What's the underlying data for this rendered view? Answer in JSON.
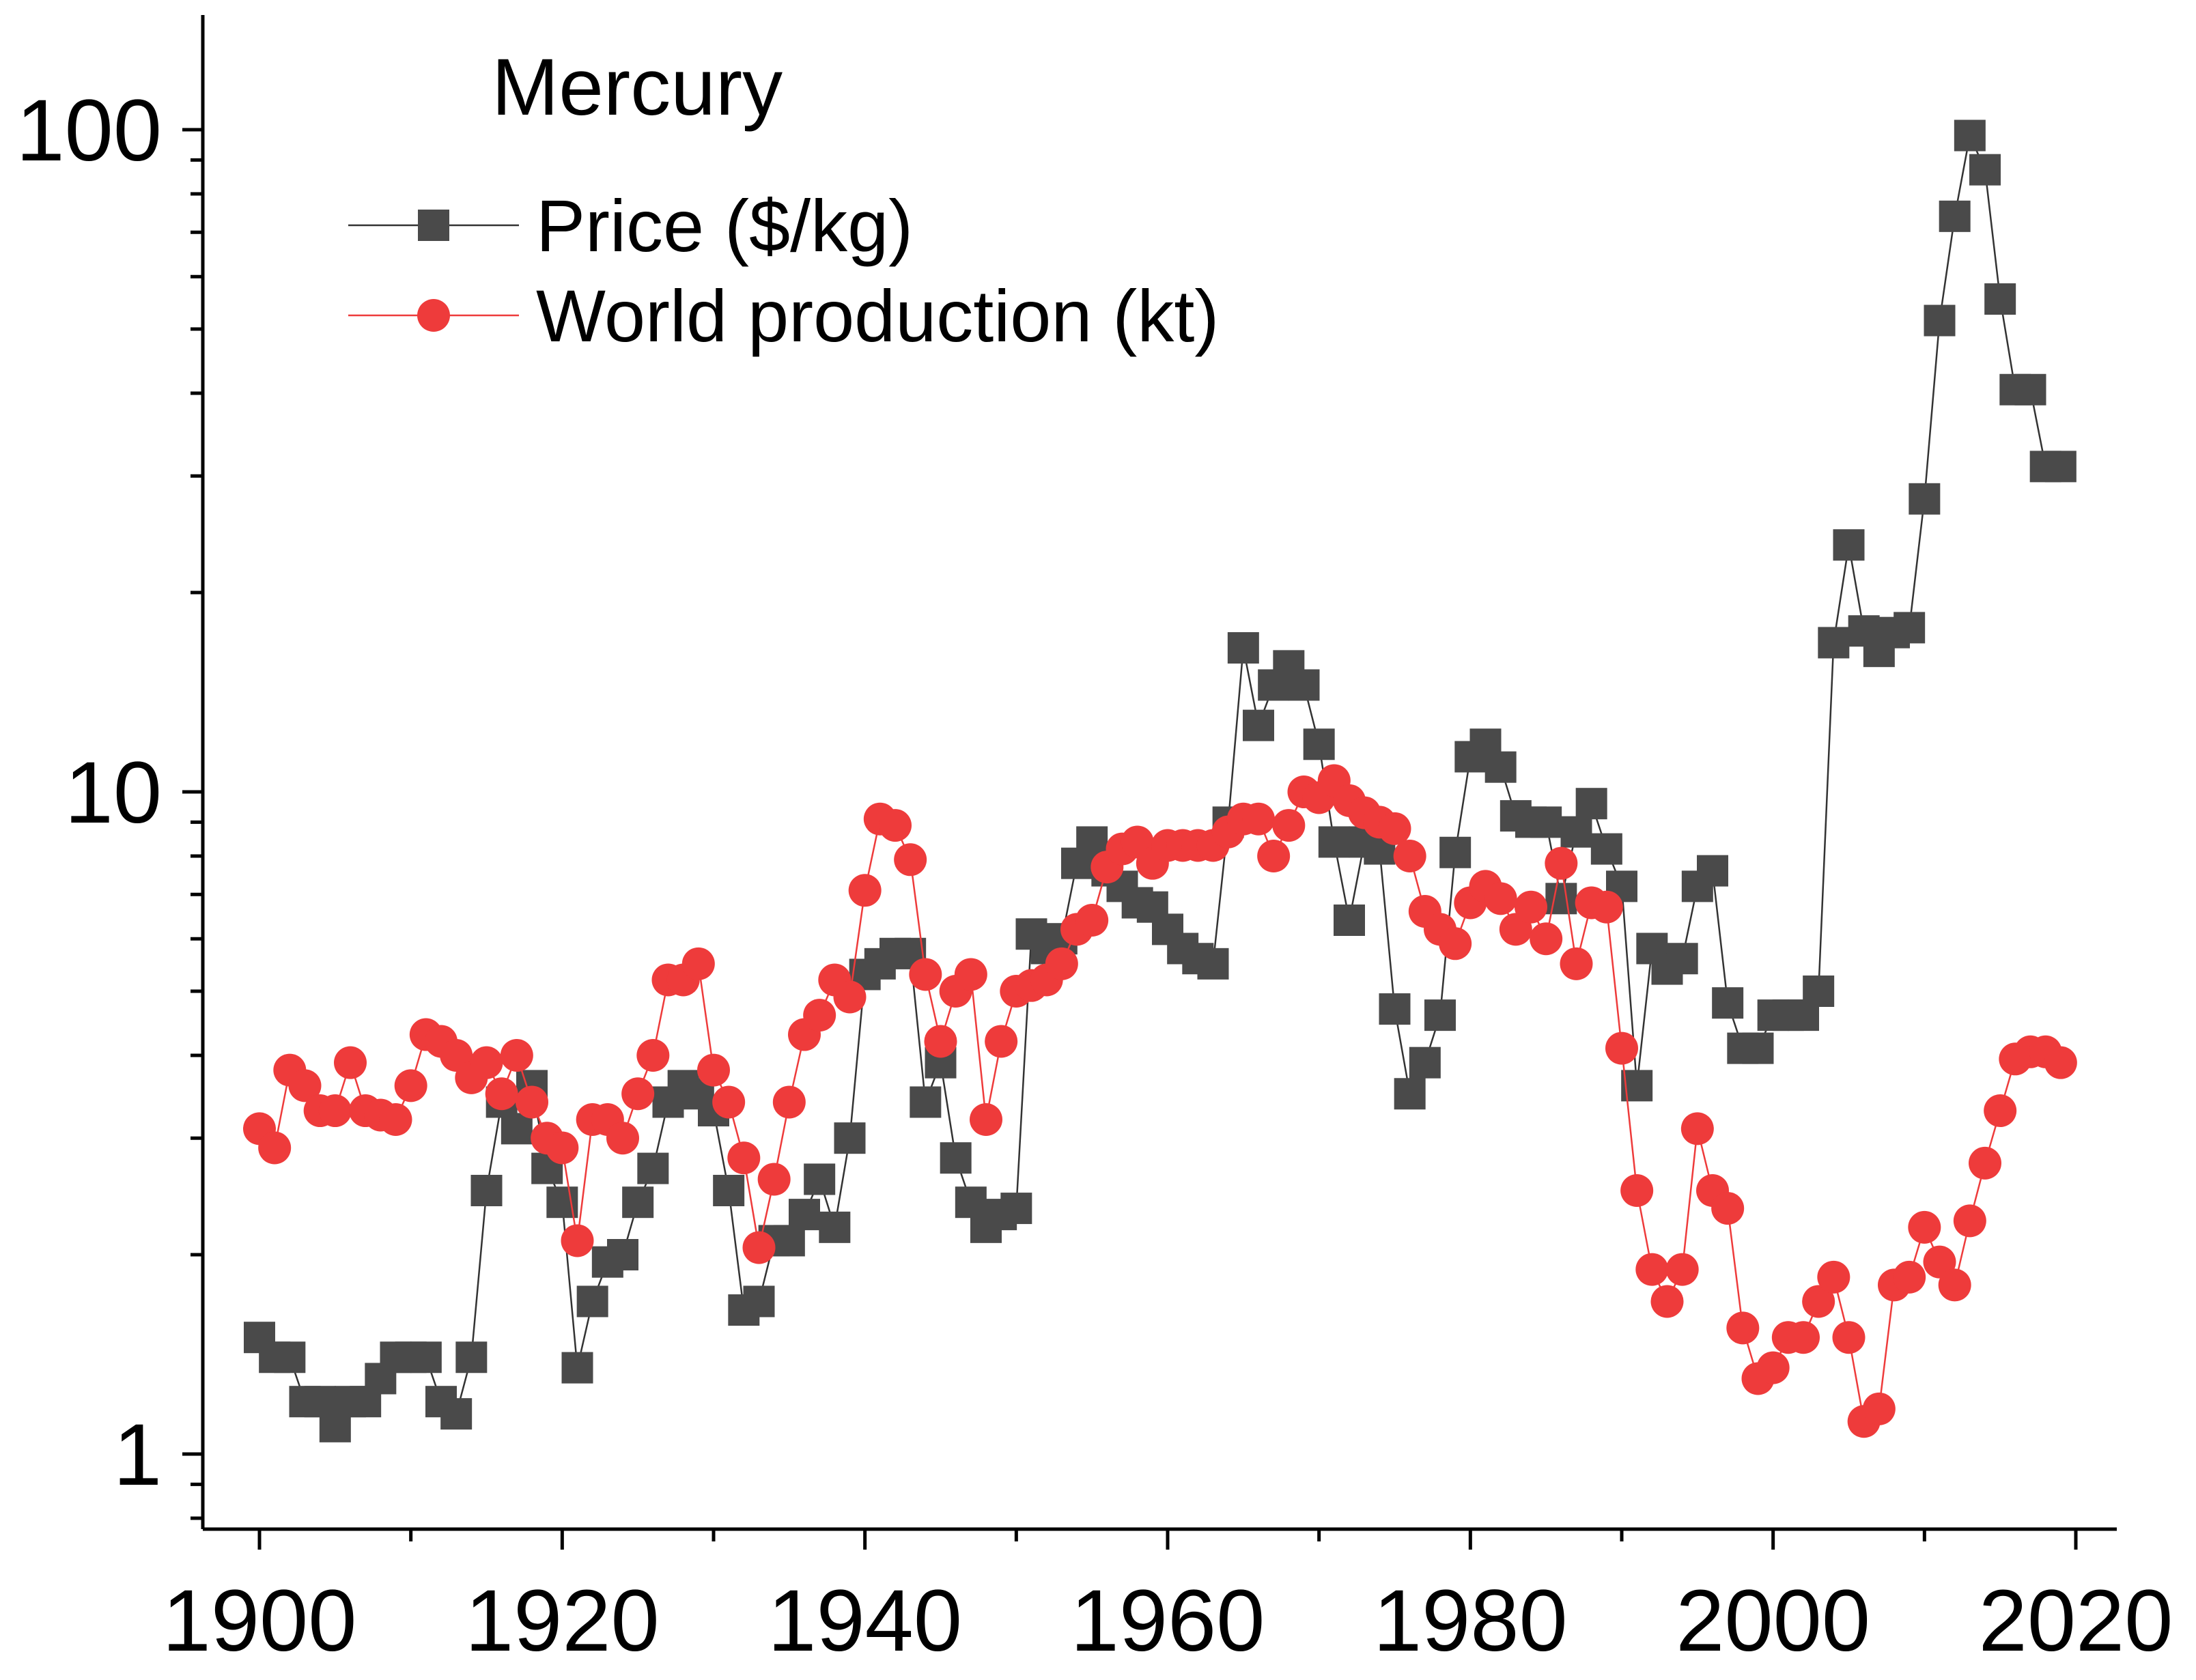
{
  "chart_data": {
    "type": "scatter",
    "title": "Mercury",
    "xlabel": "",
    "ylabel": "",
    "xlim": [
      1896,
      2023
    ],
    "ylim": [
      0.78,
      160
    ],
    "y_scale": "log",
    "grid": false,
    "legend_position": "top-left",
    "x_ticks": [
      {
        "value": 1900,
        "label": "1900"
      },
      {
        "value": 1920,
        "label": "1920"
      },
      {
        "value": 1940,
        "label": "1940"
      },
      {
        "value": 1960,
        "label": "1960"
      },
      {
        "value": 1980,
        "label": "1980"
      },
      {
        "value": 2000,
        "label": "2000"
      },
      {
        "value": 2020,
        "label": "2020"
      }
    ],
    "y_ticks": [
      {
        "value": 1,
        "label": "1"
      },
      {
        "value": 10,
        "label": "10"
      },
      {
        "value": 100,
        "label": "100"
      }
    ],
    "series": [
      {
        "name": "Price ($/kg)",
        "marker": "square",
        "color": "#4a4a4a",
        "line_color": "#333333",
        "x": [
          1900,
          1901,
          1902,
          1903,
          1904,
          1905,
          1906,
          1907,
          1908,
          1909,
          1910,
          1911,
          1912,
          1913,
          1914,
          1915,
          1916,
          1917,
          1918,
          1919,
          1920,
          1921,
          1922,
          1923,
          1924,
          1925,
          1926,
          1927,
          1928,
          1929,
          1930,
          1931,
          1932,
          1933,
          1934,
          1935,
          1936,
          1937,
          1938,
          1939,
          1940,
          1941,
          1942,
          1943,
          1944,
          1945,
          1946,
          1947,
          1948,
          1949,
          1950,
          1951,
          1952,
          1953,
          1954,
          1955,
          1956,
          1957,
          1958,
          1959,
          1960,
          1961,
          1962,
          1963,
          1964,
          1965,
          1966,
          1967,
          1968,
          1969,
          1970,
          1971,
          1972,
          1973,
          1974,
          1975,
          1976,
          1977,
          1978,
          1979,
          1980,
          1981,
          1982,
          1983,
          1984,
          1985,
          1986,
          1987,
          1988,
          1989,
          1990,
          1991,
          1992,
          1993,
          1994,
          1995,
          1996,
          1997,
          1998,
          1999,
          2000,
          2001,
          2002,
          2003,
          2004,
          2005,
          2006,
          2007,
          2008,
          2009,
          2010,
          2011,
          2012,
          2013,
          2014,
          2015,
          2016,
          2017,
          2018,
          2019
        ],
        "y": [
          1.5,
          1.4,
          1.4,
          1.2,
          1.2,
          1.1,
          1.2,
          1.2,
          1.3,
          1.4,
          1.4,
          1.4,
          1.2,
          1.15,
          1.4,
          2.5,
          3.4,
          3.1,
          3.6,
          2.7,
          2.4,
          1.35,
          1.7,
          1.95,
          2.0,
          2.4,
          2.7,
          3.4,
          3.6,
          3.5,
          3.3,
          2.5,
          1.65,
          1.7,
          2.1,
          2.1,
          2.3,
          2.6,
          2.2,
          3.0,
          5.3,
          5.5,
          5.7,
          5.7,
          3.4,
          3.9,
          2.8,
          2.4,
          2.2,
          2.3,
          2.35,
          6.1,
          5.8,
          6.0,
          7.8,
          8.4,
          7.6,
          7.2,
          6.8,
          6.7,
          6.2,
          5.8,
          5.6,
          5.5,
          9.0,
          16.5,
          12.6,
          14.5,
          15.5,
          14.5,
          11.8,
          8.4,
          6.4,
          8.4,
          8.2,
          4.7,
          3.5,
          3.9,
          4.6,
          8.1,
          11.3,
          11.8,
          10.9,
          9.2,
          9.0,
          9.0,
          6.9,
          8.7,
          9.6,
          8.2,
          7.2,
          3.6,
          5.8,
          5.4,
          5.6,
          7.2,
          7.6,
          4.8,
          4.1,
          4.1,
          4.6,
          4.6,
          4.6,
          5.0,
          16.8,
          23.6,
          17.5,
          16.3,
          17.4,
          17.7,
          27.7,
          51.5,
          74.0,
          98.0,
          87.0,
          55.5,
          40.5,
          40.5,
          31.0,
          31.0
        ]
      },
      {
        "name": "World production (kt)",
        "marker": "circle",
        "color": "#ee3b3b",
        "line_color": "#ee3b3b",
        "x": [
          1900,
          1901,
          1902,
          1903,
          1904,
          1905,
          1906,
          1907,
          1908,
          1909,
          1910,
          1911,
          1912,
          1913,
          1914,
          1915,
          1916,
          1917,
          1918,
          1919,
          1920,
          1921,
          1922,
          1923,
          1924,
          1925,
          1926,
          1927,
          1928,
          1929,
          1930,
          1931,
          1932,
          1933,
          1934,
          1935,
          1936,
          1937,
          1938,
          1939,
          1940,
          1941,
          1942,
          1943,
          1944,
          1945,
          1946,
          1947,
          1948,
          1949,
          1950,
          1951,
          1952,
          1953,
          1954,
          1955,
          1956,
          1957,
          1958,
          1959,
          1960,
          1961,
          1962,
          1963,
          1964,
          1965,
          1966,
          1967,
          1968,
          1969,
          1970,
          1971,
          1972,
          1973,
          1974,
          1975,
          1976,
          1977,
          1978,
          1979,
          1980,
          1981,
          1982,
          1983,
          1984,
          1985,
          1986,
          1987,
          1988,
          1989,
          1990,
          1991,
          1992,
          1993,
          1994,
          1995,
          1996,
          1997,
          1998,
          1999,
          2000,
          2001,
          2002,
          2003,
          2004,
          2005,
          2006,
          2007,
          2008,
          2009,
          2010,
          2011,
          2012,
          2013,
          2014,
          2015,
          2016,
          2017,
          2018,
          2019
        ],
        "y": [
          3.1,
          2.9,
          3.8,
          3.6,
          3.3,
          3.3,
          3.9,
          3.3,
          3.25,
          3.2,
          3.6,
          4.3,
          4.2,
          4.0,
          3.7,
          3.9,
          3.5,
          4.0,
          3.4,
          3.0,
          2.9,
          2.1,
          3.2,
          3.2,
          3.0,
          3.5,
          4.0,
          5.2,
          5.2,
          5.5,
          3.8,
          3.4,
          2.8,
          2.05,
          2.6,
          3.4,
          4.3,
          4.6,
          5.2,
          4.9,
          7.1,
          9.1,
          8.9,
          7.9,
          5.3,
          4.2,
          5.0,
          5.3,
          3.2,
          4.2,
          5.0,
          5.1,
          5.2,
          5.5,
          6.2,
          6.4,
          7.7,
          8.2,
          8.4,
          7.8,
          8.3,
          8.3,
          8.3,
          8.3,
          8.7,
          9.1,
          9.1,
          8.0,
          8.9,
          10.0,
          9.8,
          10.4,
          9.7,
          9.3,
          9.0,
          8.8,
          8.0,
          6.6,
          6.2,
          5.9,
          6.8,
          7.2,
          6.9,
          6.2,
          6.7,
          6.0,
          7.8,
          5.5,
          6.8,
          6.7,
          4.1,
          2.5,
          1.9,
          1.7,
          1.9,
          3.1,
          2.5,
          2.35,
          1.55,
          1.3,
          1.35,
          1.5,
          1.5,
          1.7,
          1.85,
          1.5,
          1.12,
          1.17,
          1.8,
          1.85,
          2.2,
          1.95,
          1.8,
          2.25,
          2.75,
          3.3,
          3.95,
          4.05,
          4.05,
          3.9
        ]
      }
    ]
  }
}
